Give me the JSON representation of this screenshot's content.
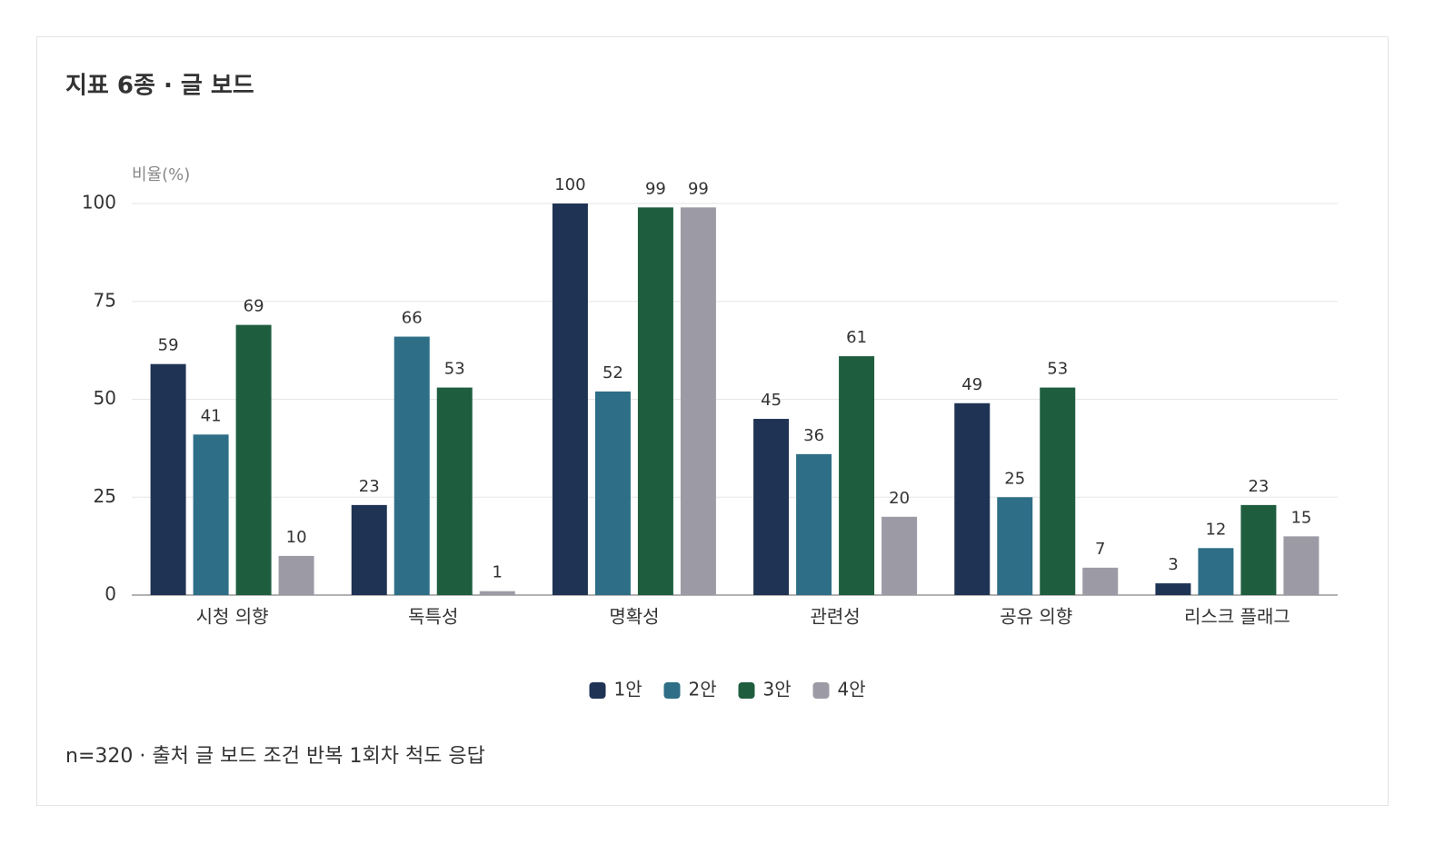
{
  "chart_data": {
    "type": "bar",
    "title": "지표 6종 · 글 보드",
    "y_label": "비율(%)",
    "categories": [
      "시청 의향",
      "독특성",
      "명확성",
      "관련성",
      "공유 의향",
      "리스크 플래그"
    ],
    "series": [
      {
        "name": "1안",
        "color": "#1f3354",
        "values": [
          59,
          23,
          100,
          45,
          49,
          3
        ]
      },
      {
        "name": "2안",
        "color": "#2e6e87",
        "values": [
          41,
          66,
          52,
          36,
          25,
          12
        ]
      },
      {
        "name": "3안",
        "color": "#1e5e3f",
        "values": [
          69,
          53,
          99,
          61,
          53,
          23
        ]
      },
      {
        "name": "4안",
        "color": "#9c9ba5",
        "values": [
          10,
          1,
          99,
          20,
          7,
          15
        ]
      }
    ],
    "ylim": [
      0,
      100
    ],
    "yticks": [
      0,
      25,
      50,
      75,
      100
    ],
    "grid": true,
    "legend": "bottom",
    "footnote": "n=320 · 출처 글 보드 조건 반복 1회차 척도 응답"
  }
}
